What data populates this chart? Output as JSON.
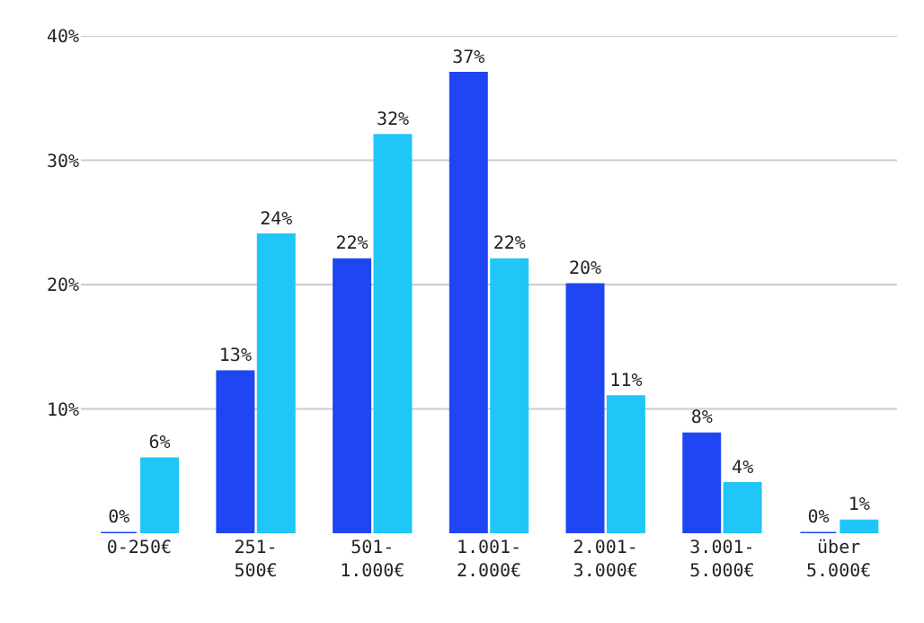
{
  "chart_data": {
    "type": "bar",
    "categories": [
      "0-250€",
      "251-\n500€",
      "501-\n1.000€",
      "1.001-\n2.000€",
      "2.001-\n3.000€",
      "3.001-\n5.000€",
      "über\n5.000€"
    ],
    "series": [
      {
        "color": "#1f46f2",
        "values": [
          0,
          13,
          22,
          37,
          20,
          8,
          0
        ],
        "value_labels": [
          "0%",
          "13%",
          "22%",
          "37%",
          "20%",
          "8%",
          "0%"
        ]
      },
      {
        "color": "#20c6f7",
        "values": [
          6,
          24,
          32,
          22,
          11,
          4,
          1
        ],
        "value_labels": [
          "6%",
          "24%",
          "32%",
          "22%",
          "11%",
          "4%",
          "1%"
        ]
      }
    ],
    "ylim": [
      0,
      40
    ],
    "yticks": [
      {
        "value": 10,
        "label": "10%"
      },
      {
        "value": 20,
        "label": "20%"
      },
      {
        "value": 30,
        "label": "30%"
      },
      {
        "value": 40,
        "label": "40%"
      }
    ],
    "grid": "y"
  }
}
